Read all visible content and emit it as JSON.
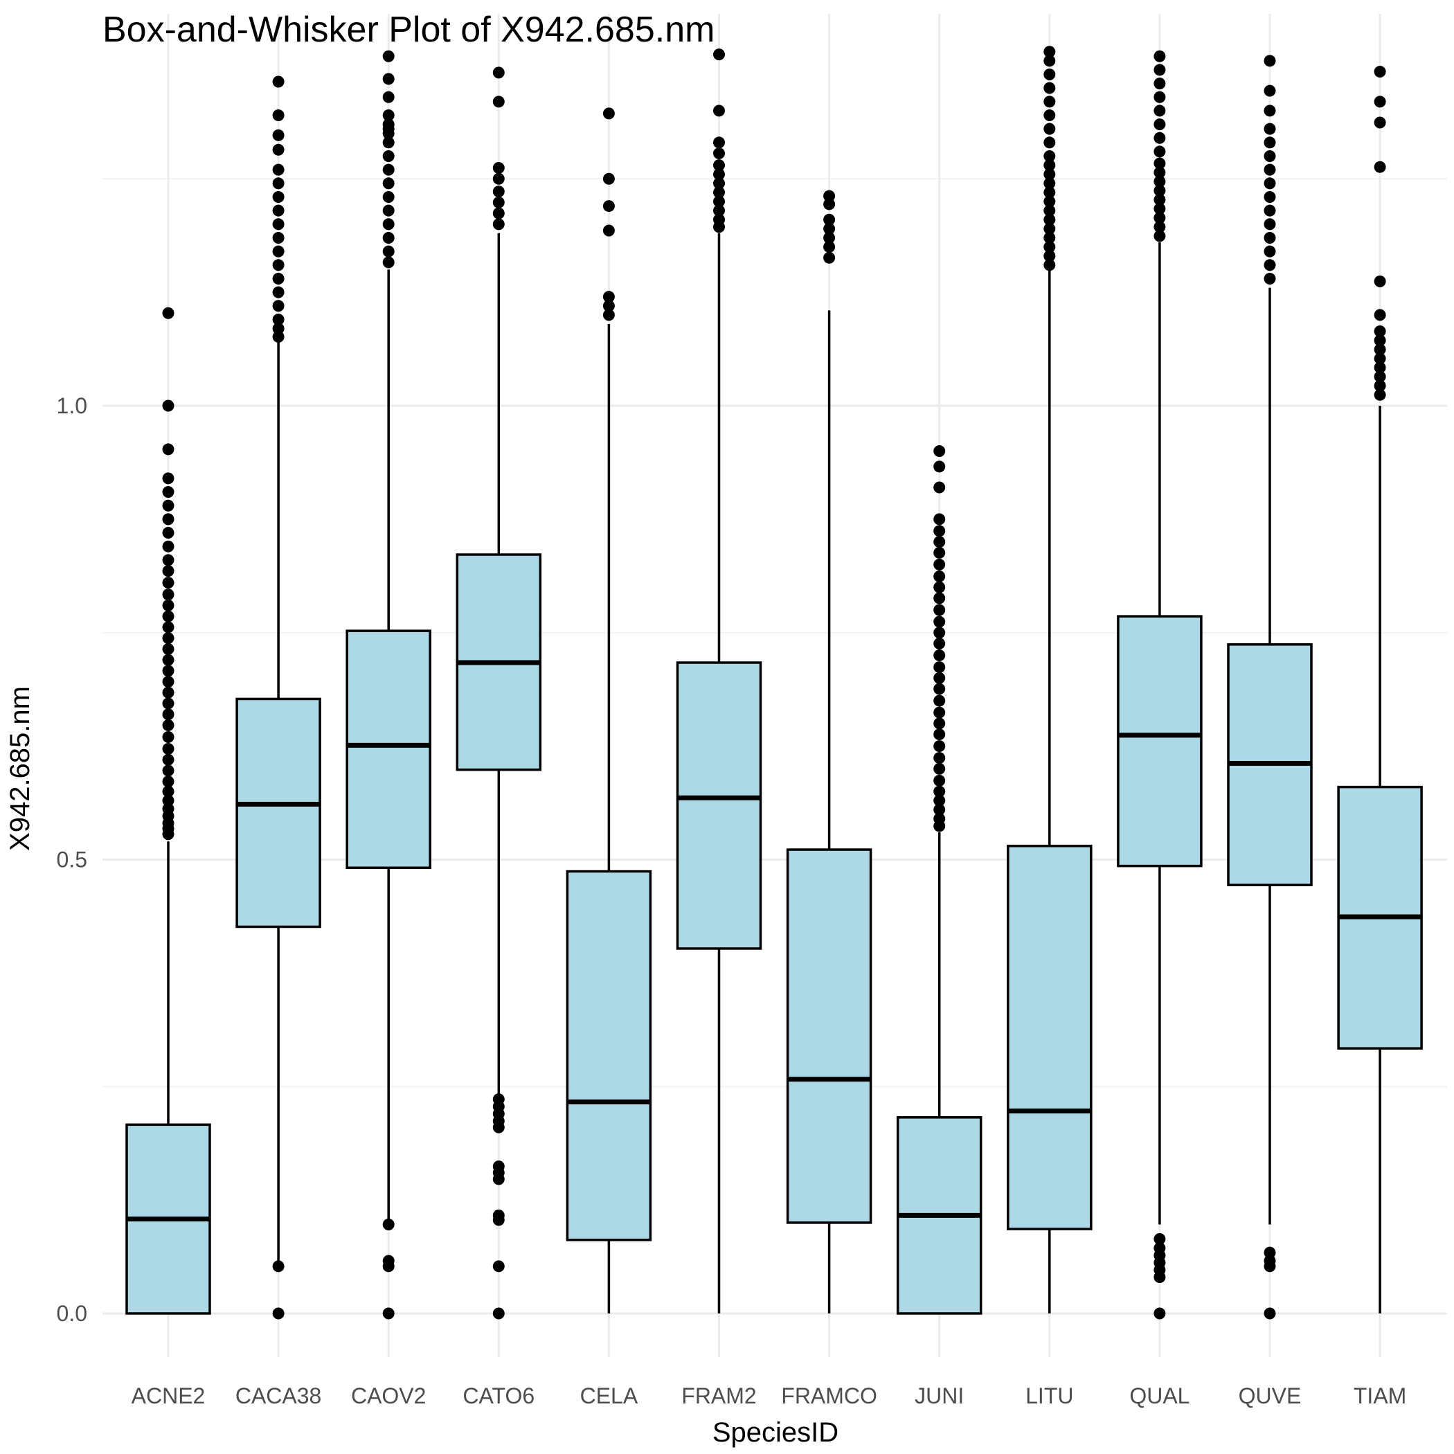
{
  "chart_data": {
    "type": "box",
    "title": "Box-and-Whisker Plot of X942.685.nm",
    "xlabel": "SpeciesID",
    "ylabel": "X942.685.nm",
    "ylim": [
      -0.05,
      1.3
    ],
    "yticks": [
      0.0,
      0.5,
      1.0
    ],
    "ytick_labels": [
      "0.0",
      "0.5",
      "1.0"
    ],
    "grid": true,
    "box_fill": "#add8e6",
    "line_color": "#000000",
    "categories": [
      "ACNE2",
      "CACA38",
      "CAOV2",
      "CATO6",
      "CELA",
      "FRAM2",
      "FRAMCO",
      "JUNI",
      "LITU",
      "QUAL",
      "QUVE",
      "TIAM"
    ],
    "boxes": [
      {
        "category": "ACNE2",
        "whisker_low": 0.0,
        "q1": 0.0,
        "median": 0.104,
        "q3": 0.208,
        "whisker_high": 0.52,
        "outliers": [
          0.528,
          0.534,
          0.54,
          0.548,
          0.556,
          0.565,
          0.575,
          0.586,
          0.598,
          0.61,
          0.622,
          0.635,
          0.648,
          0.66,
          0.672,
          0.684,
          0.696,
          0.708,
          0.72,
          0.732,
          0.744,
          0.756,
          0.768,
          0.78,
          0.792,
          0.805,
          0.818,
          0.83,
          0.845,
          0.86,
          0.875,
          0.89,
          0.905,
          0.92,
          0.952,
          1.0,
          1.102
        ]
      },
      {
        "category": "CACA38",
        "whisker_low": 0.052,
        "q1": 0.426,
        "median": 0.561,
        "q3": 0.677,
        "whisker_high": 1.07,
        "outliers": [
          0.0,
          0.052,
          1.076,
          1.085,
          1.095,
          1.11,
          1.125,
          1.14,
          1.155,
          1.17,
          1.185,
          1.2,
          1.215,
          1.23,
          1.245,
          1.26,
          1.282,
          1.298,
          1.32,
          1.357
        ]
      },
      {
        "category": "CAOV2",
        "whisker_low": 0.098,
        "q1": 0.491,
        "median": 0.626,
        "q3": 0.752,
        "whisker_high": 1.15,
        "outliers": [
          0.0,
          0.052,
          0.058,
          0.098,
          1.158,
          1.17,
          1.185,
          1.2,
          1.215,
          1.23,
          1.245,
          1.26,
          1.275,
          1.29,
          1.305,
          1.32,
          1.34,
          1.36,
          1.385,
          1.3,
          1.31
        ]
      },
      {
        "category": "CATO6",
        "whisker_low": 0.242,
        "q1": 0.599,
        "median": 0.717,
        "q3": 0.836,
        "whisker_high": 1.19,
        "outliers": [
          0.0,
          0.052,
          0.103,
          0.108,
          0.148,
          0.155,
          0.162,
          0.205,
          0.212,
          0.22,
          0.228,
          0.236,
          1.2,
          1.212,
          1.224,
          1.236,
          1.25,
          1.262,
          1.335,
          1.367
        ]
      },
      {
        "category": "CELA",
        "whisker_low": 0.0,
        "q1": 0.081,
        "median": 0.233,
        "q3": 0.487,
        "whisker_high": 1.09,
        "outliers": [
          1.1,
          1.11,
          1.12,
          1.193,
          1.22,
          1.25,
          1.322
        ]
      },
      {
        "category": "FRAM2",
        "whisker_low": 0.0,
        "q1": 0.402,
        "median": 0.568,
        "q3": 0.717,
        "whisker_high": 1.19,
        "outliers": [
          1.197,
          1.205,
          1.215,
          1.225,
          1.235,
          1.245,
          1.255,
          1.265,
          1.278,
          1.29,
          1.325,
          1.387
        ]
      },
      {
        "category": "FRAMCO",
        "whisker_low": 0.0,
        "q1": 0.1,
        "median": 0.258,
        "q3": 0.511,
        "whisker_high": 1.105,
        "outliers": [
          1.163,
          1.175,
          1.185,
          1.195,
          1.205,
          1.222,
          1.231
        ]
      },
      {
        "category": "JUNI",
        "whisker_low": 0.0,
        "q1": 0.0,
        "median": 0.108,
        "q3": 0.216,
        "whisker_high": 0.53,
        "outliers": [
          0.537,
          0.545,
          0.555,
          0.565,
          0.575,
          0.587,
          0.6,
          0.612,
          0.625,
          0.638,
          0.65,
          0.662,
          0.675,
          0.688,
          0.7,
          0.712,
          0.725,
          0.738,
          0.75,
          0.762,
          0.775,
          0.788,
          0.8,
          0.812,
          0.825,
          0.838,
          0.85,
          0.862,
          0.875,
          0.91,
          0.933,
          0.95
        ]
      },
      {
        "category": "LITU",
        "whisker_low": 0.0,
        "q1": 0.093,
        "median": 0.223,
        "q3": 0.515,
        "whisker_high": 1.15,
        "outliers": [
          1.155,
          1.165,
          1.175,
          1.185,
          1.195,
          1.205,
          1.215,
          1.225,
          1.235,
          1.245,
          1.255,
          1.265,
          1.275,
          1.29,
          1.305,
          1.32,
          1.335,
          1.35,
          1.365,
          1.38,
          1.39
        ]
      },
      {
        "category": "QUAL",
        "whisker_low": 0.098,
        "q1": 0.493,
        "median": 0.637,
        "q3": 0.768,
        "whisker_high": 1.18,
        "outliers": [
          0.0,
          0.04,
          0.048,
          0.056,
          0.064,
          0.072,
          0.082,
          1.187,
          1.197,
          1.207,
          1.217,
          1.227,
          1.237,
          1.247,
          1.257,
          1.267,
          1.28,
          1.295,
          1.31,
          1.325,
          1.34,
          1.355,
          1.37,
          1.385
        ]
      },
      {
        "category": "QUVE",
        "whisker_low": 0.098,
        "q1": 0.472,
        "median": 0.606,
        "q3": 0.737,
        "whisker_high": 1.13,
        "outliers": [
          0.0,
          0.052,
          0.058,
          0.067,
          1.14,
          1.155,
          1.17,
          1.185,
          1.2,
          1.215,
          1.23,
          1.245,
          1.26,
          1.275,
          1.29,
          1.305,
          1.325,
          1.347,
          1.38
        ]
      },
      {
        "category": "TIAM",
        "whisker_low": 0.0,
        "q1": 0.292,
        "median": 0.437,
        "q3": 0.58,
        "whisker_high": 1.0,
        "outliers": [
          1.012,
          1.022,
          1.032,
          1.042,
          1.052,
          1.062,
          1.072,
          1.082,
          1.1,
          1.137,
          1.263,
          1.312,
          1.335,
          1.368
        ]
      }
    ]
  }
}
